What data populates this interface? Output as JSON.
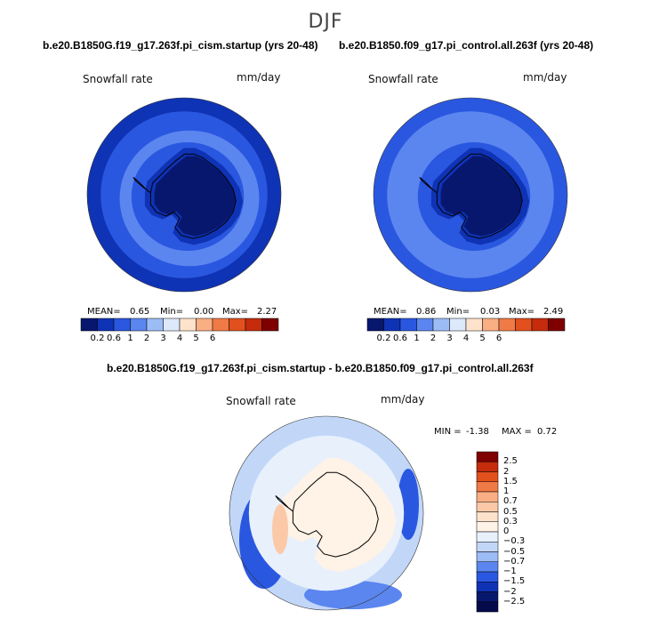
{
  "figure": {
    "season": "DJF",
    "panels": [
      {
        "id": "cism",
        "title": "b.e20.B1850G.f19_g17.263f.pi_cism.startup (yrs 20-48)",
        "field": "Snowfall rate",
        "units": "mm/day",
        "stats": {
          "mean_label": "MEAN=",
          "mean": "0.65",
          "min_label": "Min=",
          "min": "0.00",
          "max_label": "Max=",
          "max": "2.27"
        }
      },
      {
        "id": "control",
        "title": "b.e20.B1850.f09_g17.pi_control.all.263f (yrs 20-48)",
        "field": "Snowfall rate",
        "units": "mm/day",
        "stats": {
          "mean_label": "MEAN=",
          "mean": "0.86",
          "min_label": "Min=",
          "min": "0.03",
          "max_label": "Max=",
          "max": "2.49"
        }
      }
    ],
    "diff": {
      "title": "b.e20.B1850G.f19_g17.263f.pi_cism.startup - b.e20.B1850.f09_g17.pi_control.all.263f",
      "field": "Snowfall rate",
      "units": "mm/day",
      "minmax": {
        "min_label": "MIN =",
        "min": "-1.38",
        "max_label": "MAX =",
        "max": "0.72"
      }
    }
  },
  "chart_data": [
    {
      "type": "heatmap",
      "title": "b.e20.B1850G.f19_g17.263f.pi_cism.startup (yrs 20-48)",
      "variable": "Snowfall rate",
      "units": "mm/day",
      "projection": "south polar stereographic",
      "mean": 0.65,
      "min": 0.0,
      "max": 2.27,
      "colorbar_levels": [
        "0.2",
        "0.6",
        "1",
        "2",
        "3",
        "4",
        "5",
        "6"
      ],
      "colorbar_colors": [
        "#08176e",
        "#0f33b5",
        "#2a57e0",
        "#5b86ef",
        "#9cbcf6",
        "#dce9fb",
        "#fde2cc",
        "#f9ae84",
        "#f07a46",
        "#e2501e",
        "#c42c0c",
        "#7e0000"
      ]
    },
    {
      "type": "heatmap",
      "title": "b.e20.B1850.f09_g17.pi_control.all.263f (yrs 20-48)",
      "variable": "Snowfall rate",
      "units": "mm/day",
      "projection": "south polar stereographic",
      "mean": 0.86,
      "min": 0.03,
      "max": 2.49,
      "colorbar_levels": [
        "0.2",
        "0.6",
        "1",
        "2",
        "3",
        "4",
        "5",
        "6"
      ],
      "colorbar_colors": [
        "#08176e",
        "#0f33b5",
        "#2a57e0",
        "#5b86ef",
        "#9cbcf6",
        "#dce9fb",
        "#fde2cc",
        "#f9ae84",
        "#f07a46",
        "#e2501e",
        "#c42c0c",
        "#7e0000"
      ]
    },
    {
      "type": "heatmap",
      "title": "b.e20.B1850G.f19_g17.263f.pi_cism.startup - b.e20.B1850.f09_g17.pi_control.all.263f",
      "variable": "Snowfall rate",
      "units": "mm/day",
      "projection": "south polar stereographic",
      "min": -1.38,
      "max": 0.72,
      "colorbar_levels": [
        "2.5",
        "2",
        "1.5",
        "1",
        "0.7",
        "0.5",
        "0.3",
        "0",
        "−0.3",
        "−0.5",
        "−0.7",
        "−1",
        "−1.5",
        "−2",
        "−2.5"
      ],
      "colorbar_colors": [
        "#7e0000",
        "#c42c0c",
        "#e2501e",
        "#f07a46",
        "#f9ae84",
        "#fcc9a8",
        "#fde2cc",
        "#fff2e6",
        "#e8f0fc",
        "#c2d7f8",
        "#9cbcf6",
        "#5b86ef",
        "#2a57e0",
        "#0f33b5",
        "#08176e",
        "#050b4a"
      ]
    }
  ]
}
